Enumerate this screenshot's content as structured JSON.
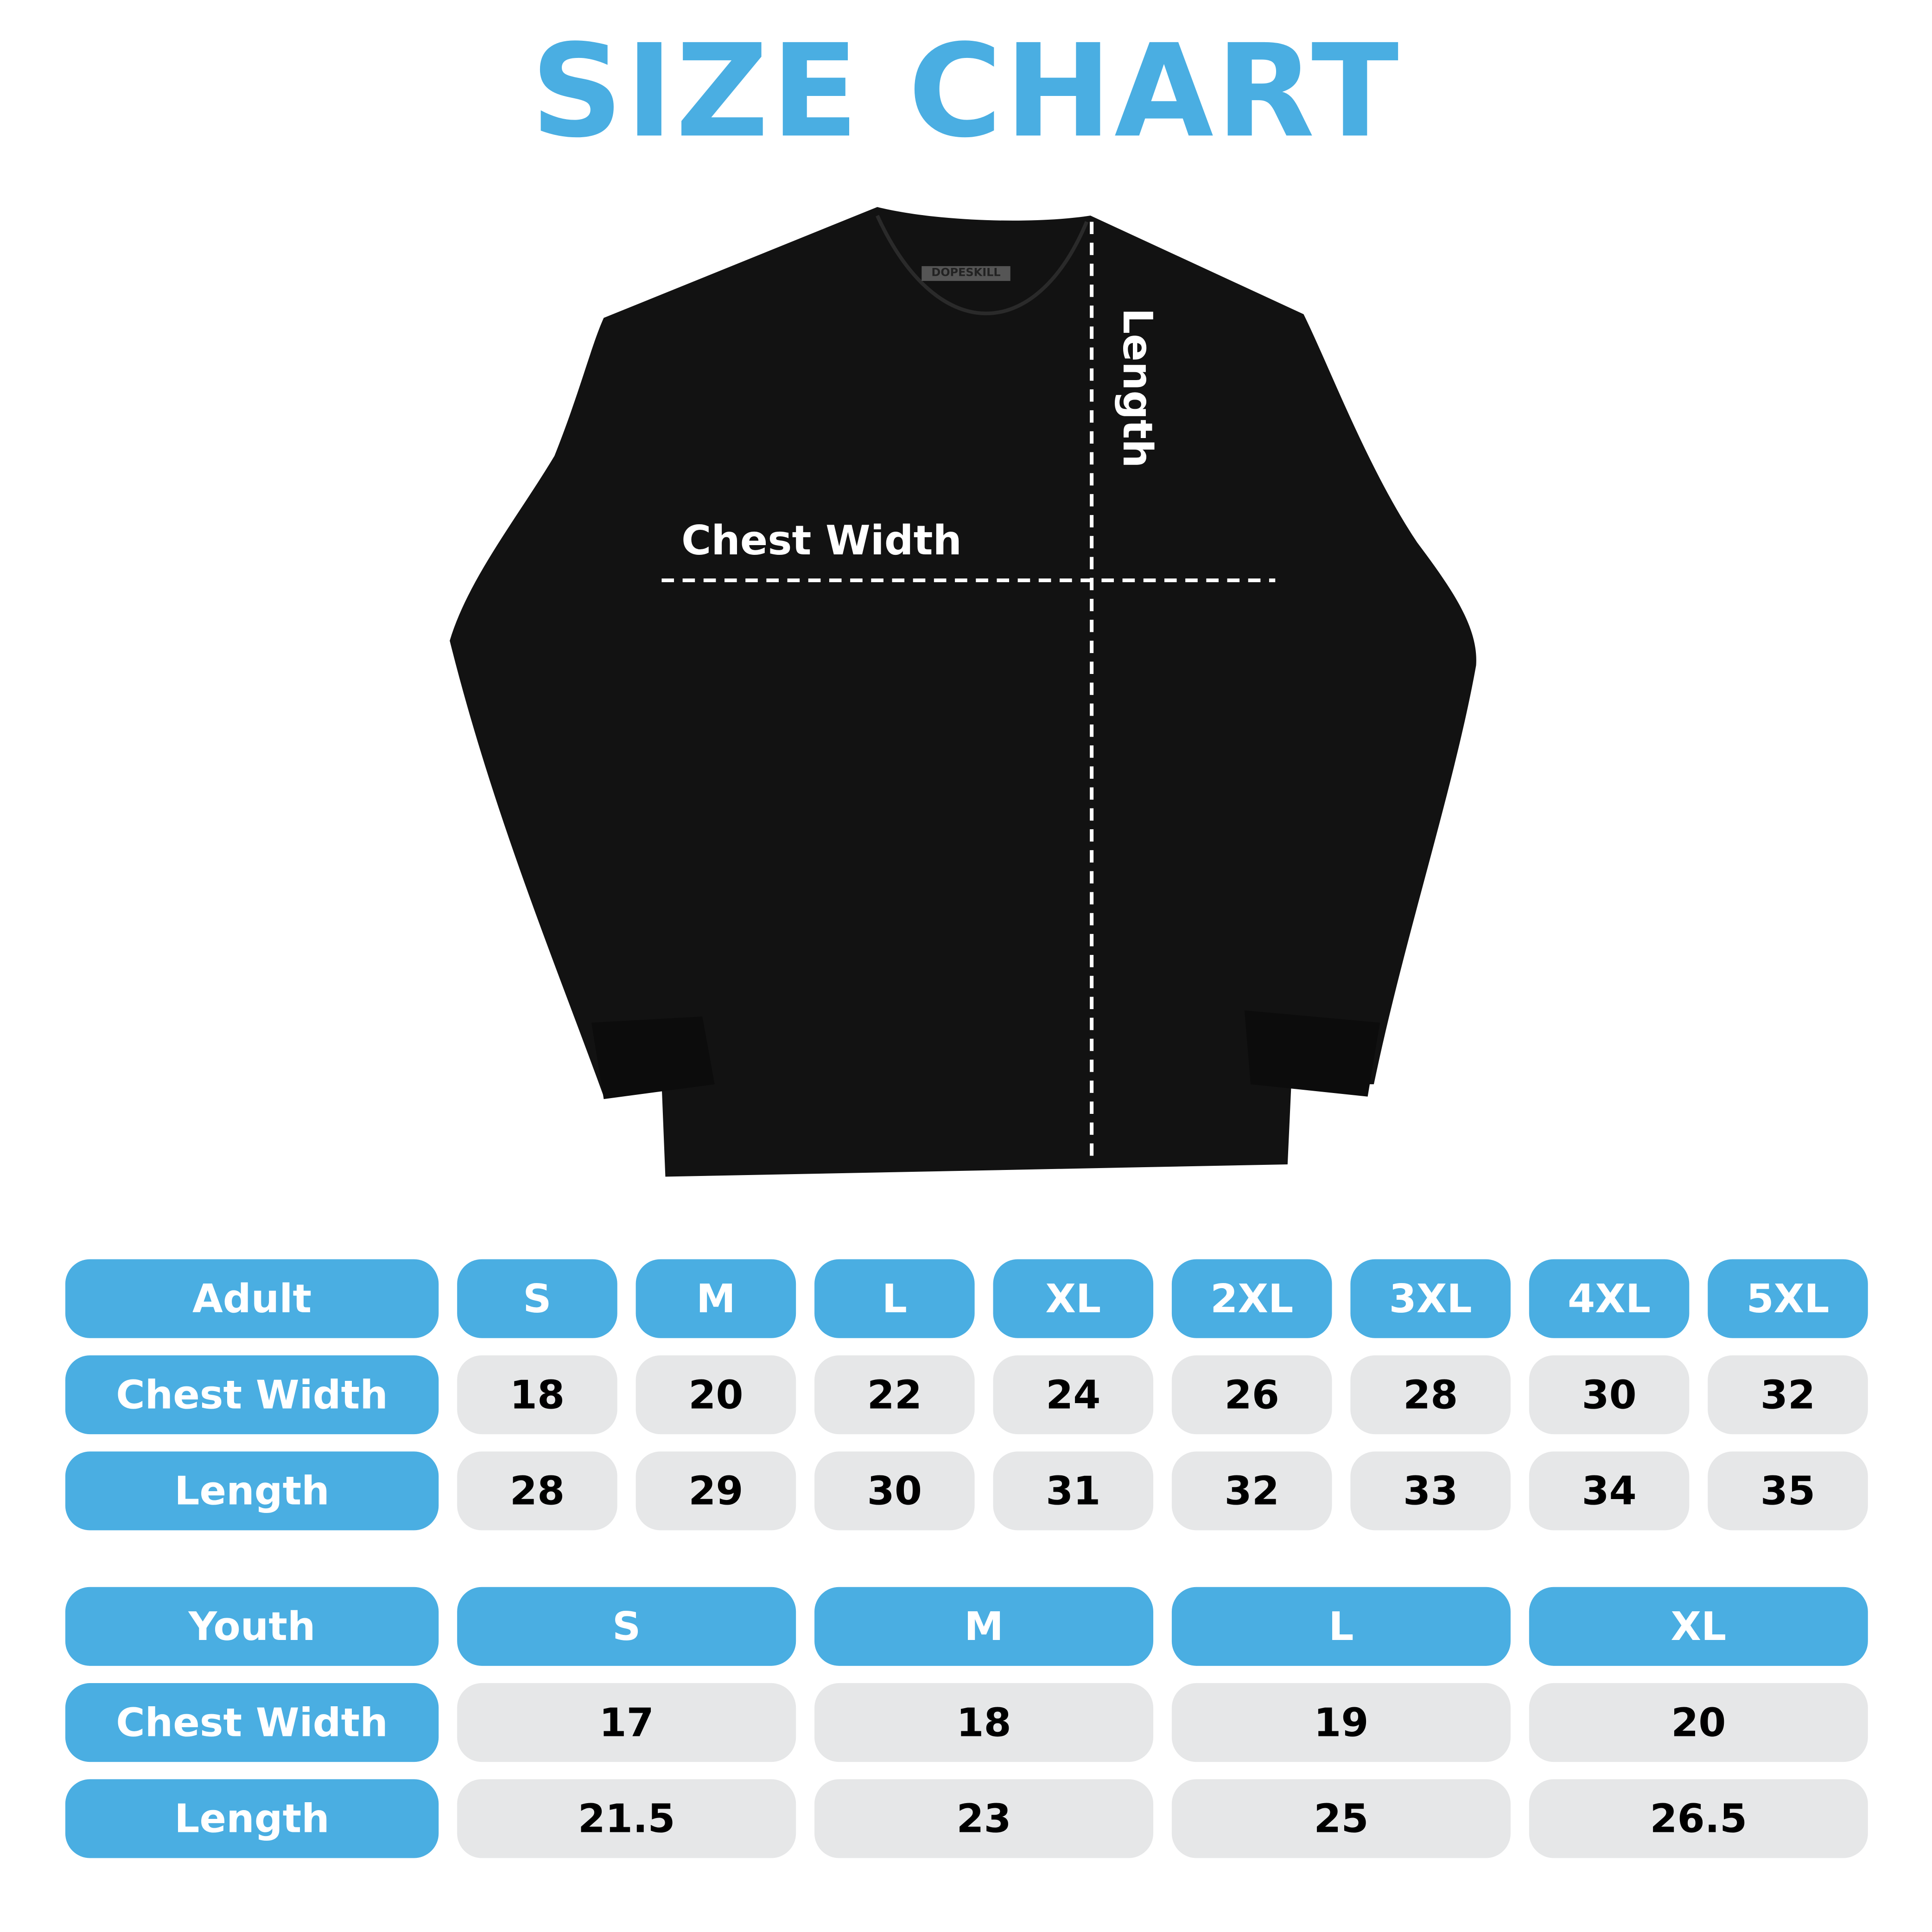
{
  "title": "SIZE CHART",
  "brand_tag": "DOPESKILL",
  "diagram": {
    "chest_label": "Chest Width",
    "length_label": "Length"
  },
  "colors": {
    "accent": "#4aaee2",
    "cell_bg": "#e6e7e8",
    "shirt": "#111111"
  },
  "adult": {
    "header": "Adult",
    "sizes": [
      "S",
      "M",
      "L",
      "XL",
      "2XL",
      "3XL",
      "4XL",
      "5XL"
    ],
    "rows": [
      {
        "label": "Chest Width",
        "values": [
          "18",
          "20",
          "22",
          "24",
          "26",
          "28",
          "30",
          "32"
        ]
      },
      {
        "label": "Length",
        "values": [
          "28",
          "29",
          "30",
          "31",
          "32",
          "33",
          "34",
          "35"
        ]
      }
    ]
  },
  "youth": {
    "header": "Youth",
    "sizes": [
      "S",
      "M",
      "L",
      "XL"
    ],
    "rows": [
      {
        "label": "Chest Width",
        "values": [
          "17",
          "18",
          "19",
          "20"
        ]
      },
      {
        "label": "Length",
        "values": [
          "21.5",
          "23",
          "25",
          "26.5"
        ]
      }
    ]
  }
}
